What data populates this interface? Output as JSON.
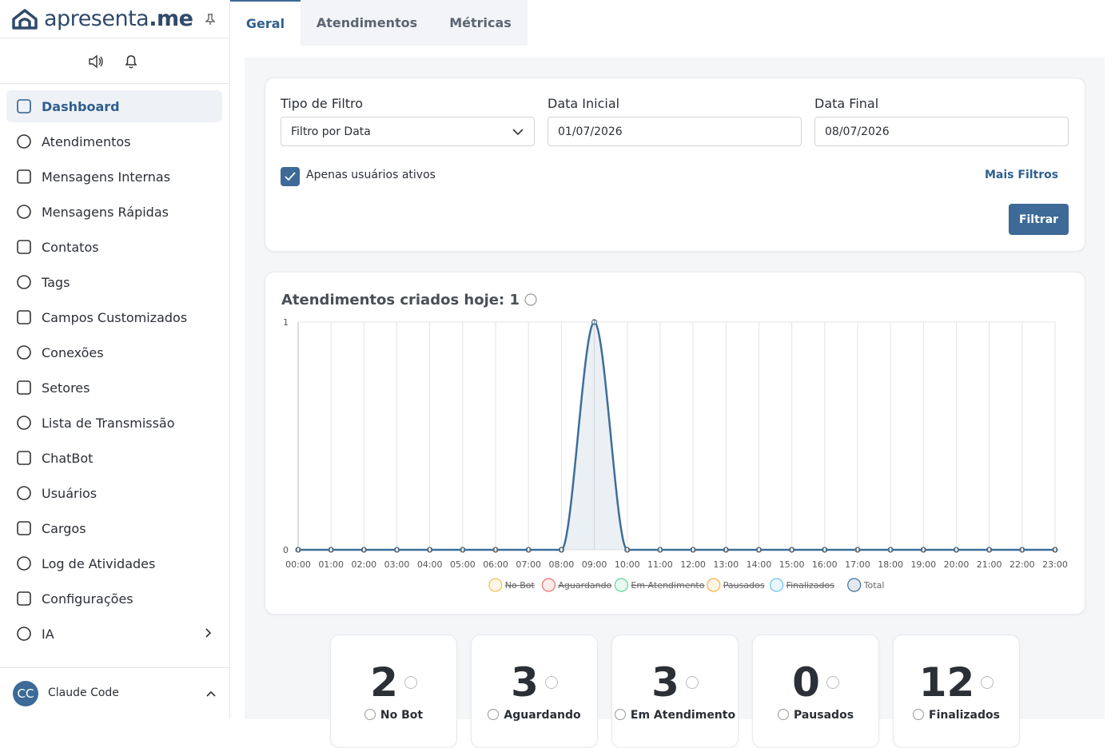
{
  "brand": {
    "name": "apresenta",
    "suffix": ".me"
  },
  "sidebar": {
    "menu": [
      {
        "label": "Dashboard",
        "active": true
      },
      {
        "label": "Atendimentos"
      },
      {
        "label": "Mensagens Internas"
      },
      {
        "label": "Mensagens Rápidas"
      },
      {
        "label": "Contatos"
      },
      {
        "label": "Tags"
      },
      {
        "label": "Campos Customizados"
      },
      {
        "label": "Conexões"
      },
      {
        "label": "Setores"
      },
      {
        "label": "Lista de Transmissão"
      },
      {
        "label": "ChatBot"
      },
      {
        "label": "Usuários"
      },
      {
        "label": "Cargos"
      },
      {
        "label": "Log de Atividades"
      },
      {
        "label": "Configurações"
      },
      {
        "label": "IA"
      }
    ],
    "user": {
      "initials": "CC",
      "name": "Claude Code"
    }
  },
  "tabs": [
    {
      "label": "Geral",
      "active": true
    },
    {
      "label": "Atendimentos"
    },
    {
      "label": "Métricas"
    }
  ],
  "filters": {
    "type_label": "Tipo de Filtro",
    "type_value": "Filtro por Data",
    "start_label": "Data Inicial",
    "start_value": "01/07/2026",
    "end_label": "Data Final",
    "end_value": "08/07/2026",
    "checkbox_label": "Apenas usuários ativos",
    "checkbox_checked": true,
    "more_filters": "Mais Filtros",
    "button": "Filtrar"
  },
  "chart_data": {
    "type": "line",
    "title": "Atendimentos criados hoje: 1",
    "categories": [
      "00:00",
      "01:00",
      "02:00",
      "03:00",
      "04:00",
      "05:00",
      "06:00",
      "07:00",
      "08:00",
      "09:00",
      "10:00",
      "11:00",
      "12:00",
      "13:00",
      "14:00",
      "15:00",
      "16:00",
      "17:00",
      "18:00",
      "19:00",
      "20:00",
      "21:00",
      "22:00",
      "23:00"
    ],
    "series": [
      {
        "name": "No Bot",
        "color": "#f2c14e",
        "hidden": true
      },
      {
        "name": "Aguardando",
        "color": "#e57373",
        "hidden": true
      },
      {
        "name": "Em Atendimento",
        "color": "#5fd49c",
        "hidden": true
      },
      {
        "name": "Pausados",
        "color": "#f0b34a",
        "hidden": true
      },
      {
        "name": "Finalizados",
        "color": "#6cc5e8",
        "hidden": true
      },
      {
        "name": "Total",
        "color": "#3f6d98",
        "values": [
          0,
          0,
          0,
          0,
          0,
          0,
          0,
          0,
          0,
          1,
          0,
          0,
          0,
          0,
          0,
          0,
          0,
          0,
          0,
          0,
          0,
          0,
          0,
          0
        ]
      }
    ],
    "ylim": [
      0,
      1
    ],
    "yticks": [
      0,
      1
    ],
    "grid": true,
    "legend": "bottom"
  },
  "stats": [
    {
      "value": 2,
      "label": "No Bot"
    },
    {
      "value": 3,
      "label": "Aguardando"
    },
    {
      "value": 3,
      "label": "Em Atendimento"
    },
    {
      "value": 0,
      "label": "Pausados"
    },
    {
      "value": 12,
      "label": "Finalizados"
    }
  ]
}
